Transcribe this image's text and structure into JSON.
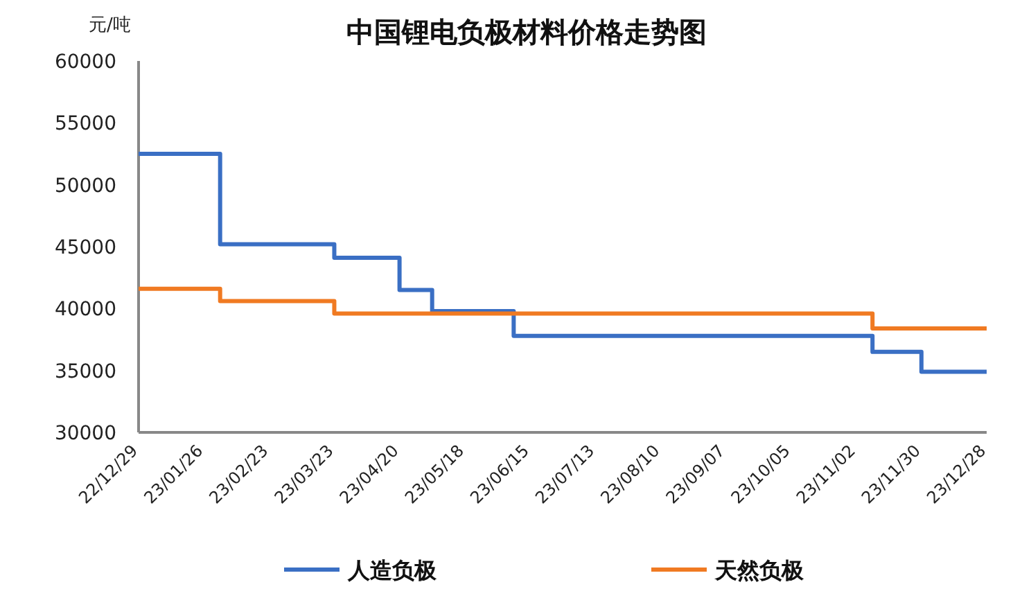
{
  "chart_data": {
    "type": "step",
    "title": "中国锂电负极材料价格走势图",
    "ylabel": "元/吨",
    "ylim": [
      30000,
      60000
    ],
    "yticks": [
      30000,
      35000,
      40000,
      45000,
      50000,
      55000,
      60000
    ],
    "categories": [
      "22/12/29",
      null,
      null,
      null,
      "23/01/26",
      null,
      null,
      null,
      "23/02/23",
      null,
      null,
      null,
      "23/03/23",
      null,
      null,
      null,
      "23/04/20",
      null,
      null,
      null,
      "23/05/18",
      null,
      null,
      null,
      "23/06/15",
      null,
      null,
      null,
      "23/07/13",
      null,
      null,
      null,
      "23/08/10",
      null,
      null,
      null,
      "23/09/07",
      null,
      null,
      null,
      "23/10/05",
      null,
      null,
      null,
      "23/11/02",
      null,
      null,
      null,
      "23/11/30",
      null,
      null,
      null,
      "23/12/28"
    ],
    "legend": "bottom",
    "grid": false,
    "marker": "none",
    "line_style": "solid",
    "series": [
      {
        "name": "人造负极",
        "color": "#3a6fc4",
        "values": [
          52500,
          52500,
          52500,
          52500,
          52500,
          45200,
          45200,
          45200,
          45200,
          45200,
          45200,
          45200,
          44100,
          44100,
          44100,
          44100,
          41500,
          41500,
          39800,
          39800,
          39800,
          39800,
          39800,
          37800,
          37800,
          37800,
          37800,
          37800,
          37800,
          37800,
          37800,
          37800,
          37800,
          37800,
          37800,
          37800,
          37800,
          37800,
          37800,
          37800,
          37800,
          37800,
          37800,
          37800,
          37800,
          36500,
          36500,
          36500,
          34900,
          34900,
          34900,
          34900,
          34900
        ]
      },
      {
        "name": "天然负极",
        "color": "#f07a22",
        "values": [
          41600,
          41600,
          41600,
          41600,
          41600,
          40600,
          40600,
          40600,
          40600,
          40600,
          40600,
          40600,
          39600,
          39600,
          39600,
          39600,
          39600,
          39600,
          39600,
          39600,
          39600,
          39600,
          39600,
          39600,
          39600,
          39600,
          39600,
          39600,
          39600,
          39600,
          39600,
          39600,
          39600,
          39600,
          39600,
          39600,
          39600,
          39600,
          39600,
          39600,
          39600,
          39600,
          39600,
          39600,
          39600,
          38400,
          38400,
          38400,
          38400,
          38400,
          38400,
          38400,
          38400
        ]
      }
    ]
  }
}
